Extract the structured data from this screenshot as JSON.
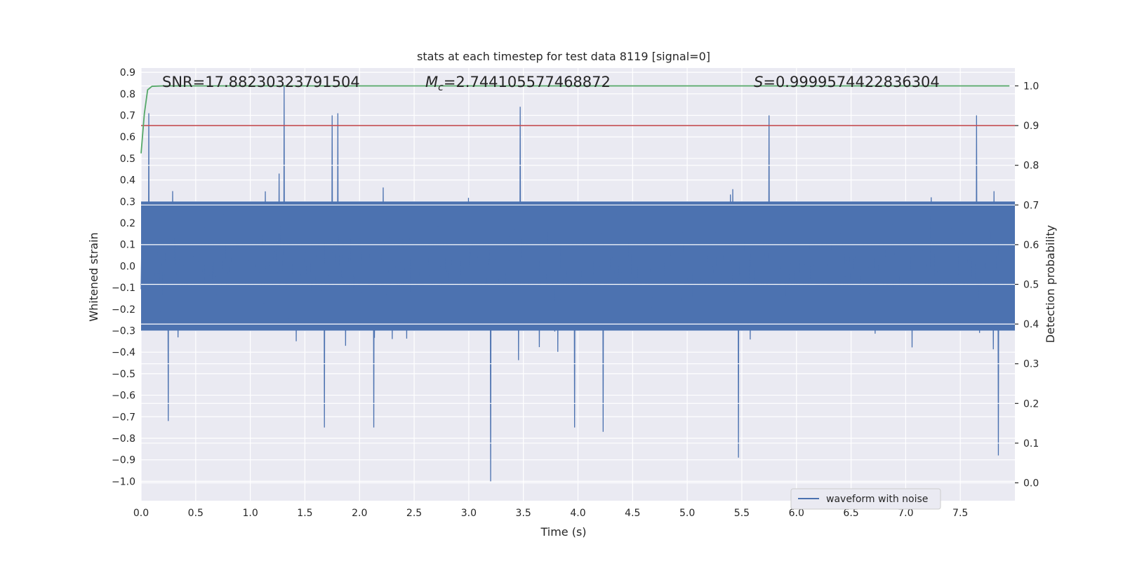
{
  "chart_data": {
    "type": "line",
    "title": "stats at each timestep for test data 8119 [signal=0]",
    "xlabel": "Time (s)",
    "ylabel_left": "Whitened strain",
    "ylabel_right": "Detection probability",
    "xlim": [
      0.0,
      8.0
    ],
    "ylim_left": [
      -1.09,
      0.92
    ],
    "ylim_right": [
      -0.045,
      1.045
    ],
    "xticks": [
      "0.0",
      "0.5",
      "1.0",
      "1.5",
      "2.0",
      "2.5",
      "3.0",
      "3.5",
      "4.0",
      "4.5",
      "5.0",
      "5.5",
      "6.0",
      "6.5",
      "7.0",
      "7.5"
    ],
    "yticks_left": [
      "0.9",
      "0.8",
      "0.7",
      "0.6",
      "0.5",
      "0.4",
      "0.3",
      "0.2",
      "0.1",
      "0.0",
      "−0.1",
      "−0.2",
      "−0.3",
      "−0.4",
      "−0.5",
      "−0.6",
      "−0.7",
      "−0.8",
      "−0.9",
      "−1.0"
    ],
    "yticks_right": [
      "0.0",
      "0.1",
      "0.2",
      "0.3",
      "0.4",
      "0.5",
      "0.6",
      "0.7",
      "0.8",
      "0.9",
      "1.0"
    ],
    "annotations": {
      "snr": "SNR=17.88230323791504",
      "mc_symbol": "M",
      "mc_subscript": "c",
      "mc_value": "=2.744105577468872",
      "s_symbol": "S",
      "s_value": "=0.9999574422836304"
    },
    "legend": {
      "label": "waveform with noise",
      "location": "lower-right"
    },
    "threshold": {
      "axis": "right",
      "value": 0.9,
      "color": "#c44e52"
    },
    "detection_probability": {
      "color": "#55a868",
      "x": [
        0.0,
        0.03,
        0.06,
        0.1,
        0.2,
        0.5,
        1.0,
        2.0,
        4.0,
        6.0,
        7.95
      ],
      "y": [
        0.83,
        0.93,
        0.99,
        0.999,
        1.0,
        1.0,
        1.0,
        1.0,
        1.0,
        1.0,
        1.0
      ]
    },
    "waveform": {
      "color": "#4c72b0",
      "series_note_excluded": true,
      "peaks": [
        {
          "x": 0.07,
          "y": 0.71
        },
        {
          "x": 1.31,
          "y": 0.84
        },
        {
          "x": 1.75,
          "y": 0.7
        },
        {
          "x": 1.8,
          "y": 0.71
        },
        {
          "x": 3.47,
          "y": 0.74
        },
        {
          "x": 5.75,
          "y": 0.7
        },
        {
          "x": 7.65,
          "y": 0.7
        }
      ],
      "troughs": [
        {
          "x": 0.25,
          "y": -0.72
        },
        {
          "x": 1.68,
          "y": -0.75
        },
        {
          "x": 2.13,
          "y": -0.75
        },
        {
          "x": 3.2,
          "y": -1.0
        },
        {
          "x": 3.97,
          "y": -0.75
        },
        {
          "x": 4.23,
          "y": -0.77
        },
        {
          "x": 5.47,
          "y": -0.89
        },
        {
          "x": 7.85,
          "y": -0.88
        }
      ],
      "band_range": [
        -0.3,
        0.3
      ]
    }
  },
  "colors": {
    "axes_bg": "#eaeaf2",
    "grid": "#ffffff",
    "waveform": "#4c72b0",
    "probability": "#55a868",
    "threshold": "#c44e52"
  }
}
